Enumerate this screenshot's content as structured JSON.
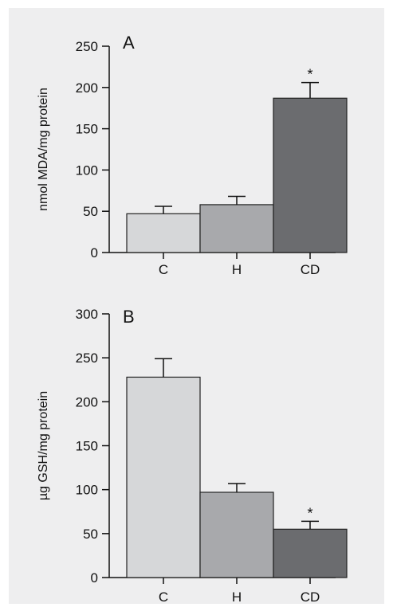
{
  "colors": {
    "background": "#eeeeef",
    "axis": "#111111",
    "bar_outline": "#222222",
    "C": "#d6d7d9",
    "H": "#a8a9ac",
    "CD": "#6b6c6f"
  },
  "chart_data": [
    {
      "type": "bar",
      "panel_label": "A",
      "title": "",
      "xlabel": "",
      "ylabel": "nmol MDA/mg protein",
      "ylim": [
        0,
        250
      ],
      "yticks": [
        0,
        50,
        100,
        150,
        200,
        250
      ],
      "categories": [
        "C",
        "H",
        "CD"
      ],
      "values": [
        47,
        58,
        187
      ],
      "errors": [
        9,
        10,
        19
      ],
      "significance": [
        "",
        "",
        "*"
      ]
    },
    {
      "type": "bar",
      "panel_label": "B",
      "title": "",
      "xlabel": "",
      "ylabel": "µg GSH/mg protein",
      "ylim": [
        0,
        300
      ],
      "yticks": [
        0,
        50,
        100,
        150,
        200,
        250,
        300
      ],
      "categories": [
        "C",
        "H",
        "CD"
      ],
      "values": [
        228,
        97,
        55
      ],
      "errors": [
        21,
        10,
        9
      ],
      "significance": [
        "",
        "",
        "*"
      ]
    }
  ]
}
